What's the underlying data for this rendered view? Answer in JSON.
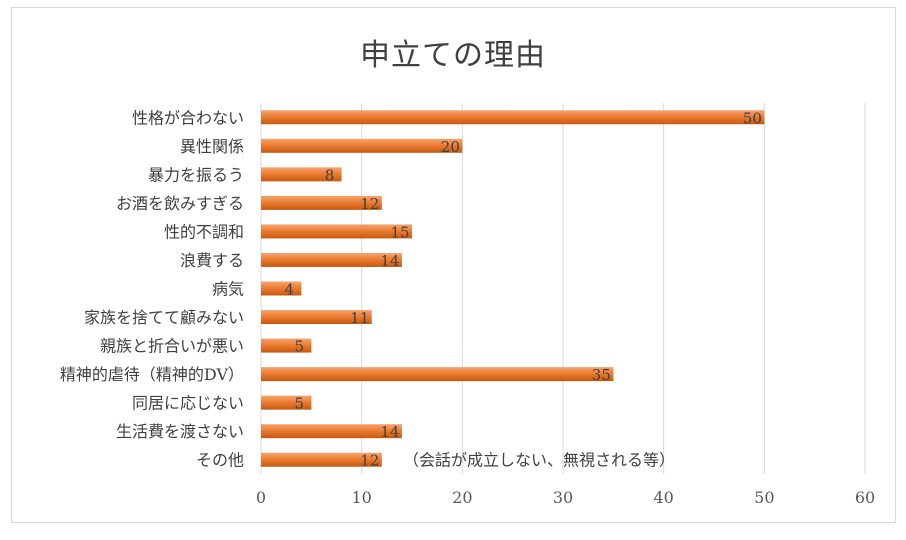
{
  "chart_data": {
    "type": "bar",
    "orientation": "horizontal",
    "title": "申立ての理由",
    "categories": [
      "性格が合わない",
      "異性関係",
      "暴力を振るう",
      "お酒を飲みすぎる",
      "性的不調和",
      "浪費する",
      "病気",
      "家族を捨てて顧みない",
      "親族と折合いが悪い",
      "精神的虐待（精神的DV）",
      "同居に応じない",
      "生活費を渡さない",
      "その他"
    ],
    "values": [
      50,
      20,
      8,
      12,
      15,
      14,
      4,
      11,
      5,
      35,
      5,
      14,
      12
    ],
    "xlim": [
      0,
      60
    ],
    "xticks": [
      0,
      10,
      20,
      30,
      40,
      50,
      60
    ],
    "grid": true,
    "bar_color": "#ed7d31",
    "annotation": "（会話が成立しない、無視される等）"
  }
}
